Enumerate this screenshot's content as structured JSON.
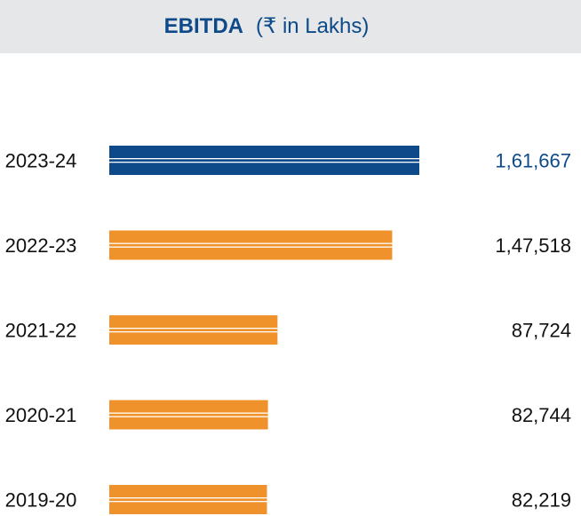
{
  "colors": {
    "highlight": "#0e4a8a",
    "bar": "#f0922b",
    "header_bg": "#e6e7e8",
    "text": "#111111"
  },
  "chart_data": {
    "type": "bar",
    "orientation": "horizontal",
    "title": "EBITDA",
    "subtitle": "(₹ in Lakhs)",
    "xlabel": "",
    "ylabel": "",
    "grid": false,
    "categories": [
      "2023-24",
      "2022-23",
      "2021-22",
      "2020-21",
      "2019-20"
    ],
    "values": [
      161667,
      147518,
      87724,
      82744,
      82219
    ],
    "value_labels": [
      "1,61,667",
      "1,47,518",
      "87,724",
      "82,744",
      "82,219"
    ],
    "highlight_index": 0
  }
}
